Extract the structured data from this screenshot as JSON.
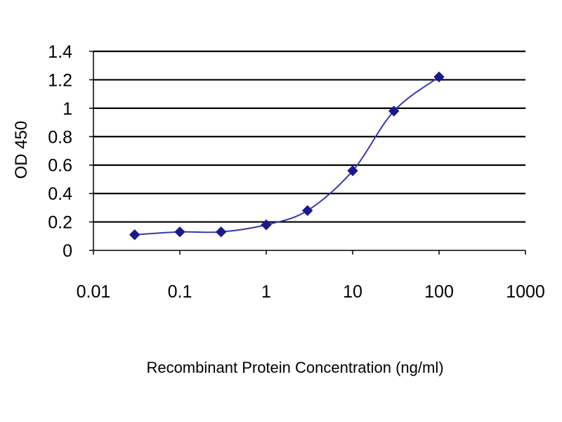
{
  "chart_data": {
    "type": "line",
    "title": "",
    "xlabel": "Recombinant Protein Concentration (ng/ml)",
    "ylabel": "OD 450",
    "xscale": "log",
    "xlim": [
      0.01,
      1000
    ],
    "ylim": [
      0,
      1.4
    ],
    "grid": "horizontal",
    "legend": "none",
    "y_ticks": [
      "0",
      "0.2",
      "0.4",
      "0.6",
      "0.8",
      "1",
      "1.2",
      "1.4"
    ],
    "x_ticks": [
      "0.01",
      "0.1",
      "1",
      "10",
      "100",
      "1000"
    ],
    "series": [
      {
        "x": [
          0.03,
          0.1,
          0.3,
          1,
          3,
          10,
          30,
          100
        ],
        "y": [
          0.11,
          0.13,
          0.13,
          0.18,
          0.28,
          0.56,
          0.98,
          1.22
        ]
      }
    ],
    "colors": {
      "line": "#3a3aa8",
      "marker": "#1a1a8c",
      "grid": "#000000"
    }
  }
}
